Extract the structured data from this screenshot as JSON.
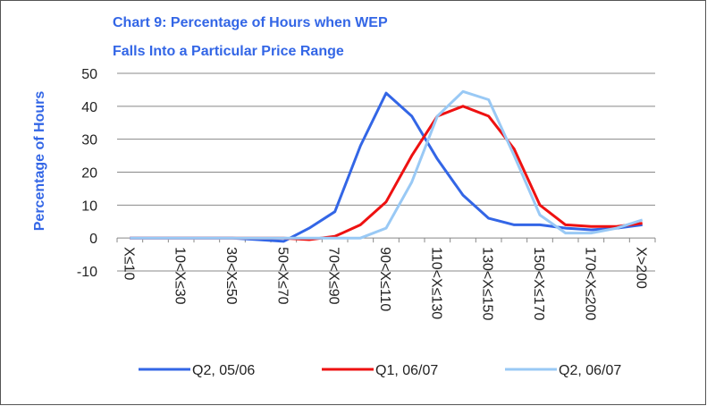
{
  "chart_data": {
    "type": "line",
    "title": [
      "Chart 9: Percentage of Hours when WEP",
      "Falls Into a Particular Price Range"
    ],
    "ylabel": "Percentage of Hours",
    "categories": [
      "X≤10",
      null,
      "10<X≤30",
      null,
      "30<X≤50",
      null,
      "50<X≤70",
      null,
      "70<X≤90",
      null,
      "90<X≤110",
      null,
      "110<X≤130",
      null,
      "130<X≤150",
      null,
      "150<X≤170",
      null,
      "170<X≤200",
      null,
      "X>200"
    ],
    "series": [
      {
        "name": "Q2, 05/06",
        "color": "#3366e6",
        "values": [
          0,
          0,
          0,
          0,
          0,
          -0.5,
          -1,
          3,
          8,
          28,
          44,
          37,
          24,
          13,
          6,
          4,
          4,
          3,
          2.5,
          3,
          4
        ]
      },
      {
        "name": "Q1, 06/07",
        "color": "#ee1111",
        "values": [
          0,
          0,
          0,
          0,
          0,
          0,
          0,
          -0.5,
          0.5,
          4,
          11,
          25,
          37,
          40,
          37,
          27,
          10,
          4,
          3.5,
          3.5,
          4.5
        ]
      },
      {
        "name": "Q2, 06/07",
        "color": "#99c9f5",
        "values": [
          0,
          0,
          0,
          0,
          0,
          0,
          0,
          0,
          0,
          0,
          3,
          17,
          37,
          44.5,
          42,
          25,
          7,
          1.5,
          1.5,
          3,
          5.5
        ]
      }
    ],
    "ylim": [
      -10,
      50
    ],
    "yticks": [
      -10,
      0,
      10,
      20,
      30,
      40,
      50
    ],
    "grid": true
  }
}
